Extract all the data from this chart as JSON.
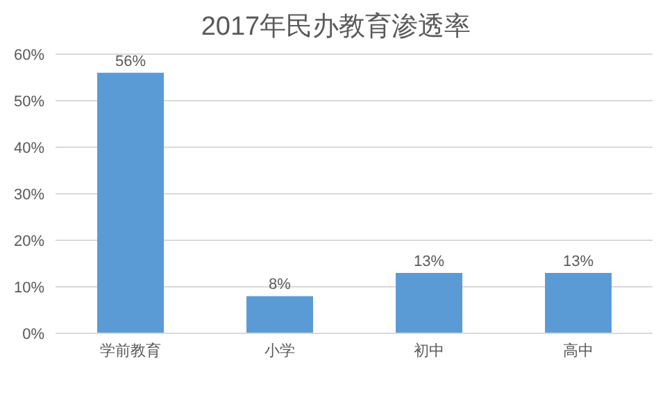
{
  "chart_data": {
    "type": "bar",
    "title": "2017年民办教育渗透率",
    "categories": [
      "学前教育",
      "小学",
      "初中",
      "高中"
    ],
    "values": [
      56,
      8,
      13,
      13
    ],
    "value_labels": [
      "56%",
      "8%",
      "13%",
      "13%"
    ],
    "color": "#5b9bd5",
    "ylim": [
      0,
      60
    ],
    "yticks": [
      {
        "value": 0,
        "label": "0%"
      },
      {
        "value": 10,
        "label": "10%"
      },
      {
        "value": 20,
        "label": "20%"
      },
      {
        "value": 30,
        "label": "30%"
      },
      {
        "value": 40,
        "label": "40%"
      },
      {
        "value": 50,
        "label": "50%"
      },
      {
        "value": 60,
        "label": "60%"
      }
    ],
    "grid": "y",
    "legend": false
  }
}
